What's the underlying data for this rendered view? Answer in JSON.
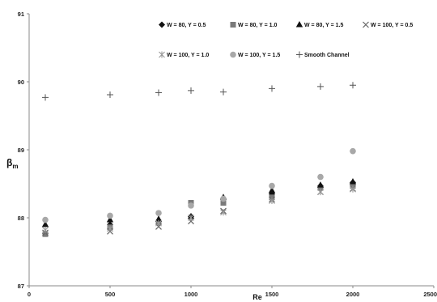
{
  "chart_data": {
    "type": "scatter",
    "xlabel": "Re",
    "ylabel": "β",
    "ylabel_sub": "m",
    "xlim": [
      0,
      2500
    ],
    "ylim": [
      87,
      91
    ],
    "xticks": [
      0,
      500,
      1000,
      1500,
      2000,
      2500
    ],
    "yticks": [
      87,
      88,
      89,
      90,
      91
    ],
    "grid": false,
    "legend_placement": "top-right",
    "series": [
      {
        "name": "W = 80, Y = 0.5",
        "marker": "diamond",
        "color": "#111111",
        "points": [
          [
            100,
            87.77
          ],
          [
            500,
            87.9
          ],
          [
            800,
            87.95
          ],
          [
            1000,
            88.02
          ],
          [
            1200,
            88.28
          ],
          [
            1500,
            88.35
          ],
          [
            1800,
            88.47
          ],
          [
            2000,
            88.52
          ]
        ]
      },
      {
        "name": "W = 80, Y = 1.0",
        "marker": "square",
        "color": "#7a7a7a",
        "points": [
          [
            100,
            87.76
          ],
          [
            500,
            87.86
          ],
          [
            800,
            87.93
          ],
          [
            1000,
            88.22
          ],
          [
            1200,
            88.22
          ],
          [
            1500,
            88.3
          ],
          [
            1800,
            88.44
          ],
          [
            2000,
            88.47
          ]
        ]
      },
      {
        "name": "W = 80, Y = 1.5",
        "marker": "triangle",
        "color": "#111111",
        "points": [
          [
            100,
            87.9
          ],
          [
            500,
            87.97
          ],
          [
            800,
            87.98
          ],
          [
            1000,
            88.02
          ],
          [
            1200,
            88.3
          ],
          [
            1500,
            88.4
          ],
          [
            1800,
            88.48
          ],
          [
            2000,
            88.53
          ]
        ]
      },
      {
        "name": "W = 100, Y = 0.5",
        "marker": "x",
        "color": "#666666",
        "points": [
          [
            100,
            87.78
          ],
          [
            500,
            87.8
          ],
          [
            800,
            87.87
          ],
          [
            1000,
            87.95
          ],
          [
            1200,
            88.1
          ],
          [
            1500,
            88.27
          ],
          [
            1800,
            88.38
          ],
          [
            2000,
            88.43
          ]
        ]
      },
      {
        "name": "W = 100, Y = 1.0",
        "marker": "star",
        "color": "#999999",
        "points": [
          [
            100,
            87.82
          ],
          [
            500,
            87.84
          ],
          [
            800,
            87.92
          ],
          [
            1000,
            88.0
          ],
          [
            1200,
            88.08
          ],
          [
            1500,
            88.25
          ],
          [
            1800,
            88.38
          ],
          [
            2000,
            88.42
          ]
        ]
      },
      {
        "name": "W = 100, Y = 1.5",
        "marker": "circle",
        "color": "#a8a8a8",
        "points": [
          [
            100,
            87.97
          ],
          [
            500,
            88.03
          ],
          [
            800,
            88.07
          ],
          [
            1000,
            88.18
          ],
          [
            1200,
            88.28
          ],
          [
            1500,
            88.47
          ],
          [
            1800,
            88.6
          ],
          [
            2000,
            88.98
          ]
        ]
      },
      {
        "name": "Smooth Channel",
        "marker": "plus",
        "color": "#555555",
        "points": [
          [
            100,
            89.77
          ],
          [
            500,
            89.81
          ],
          [
            800,
            89.84
          ],
          [
            1000,
            89.87
          ],
          [
            1200,
            89.85
          ],
          [
            1500,
            89.9
          ],
          [
            1800,
            89.93
          ],
          [
            2000,
            89.95
          ]
        ]
      }
    ]
  }
}
